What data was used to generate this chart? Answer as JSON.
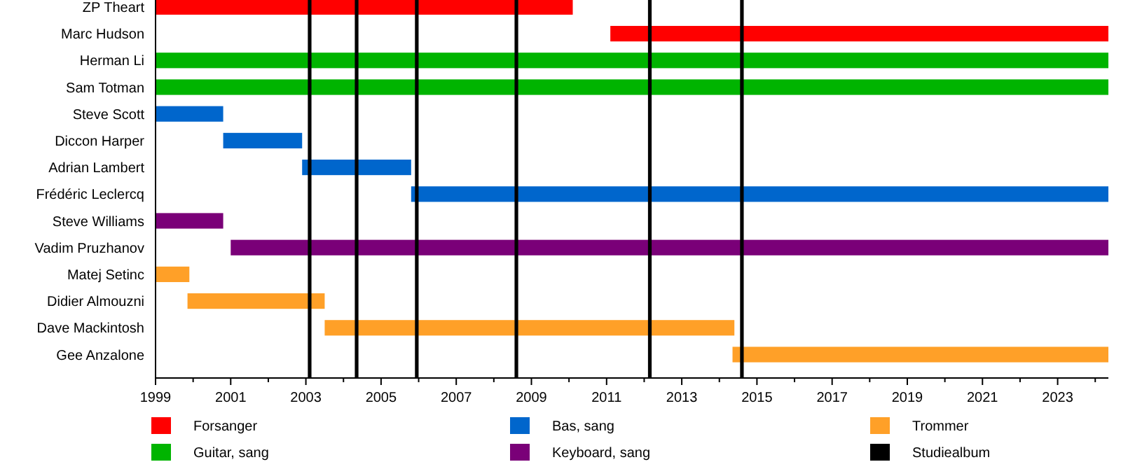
{
  "chart_data": {
    "type": "bar",
    "orientation": "horizontal",
    "categories": [
      "ZP Theart",
      "Marc Hudson",
      "Herman Li",
      "Sam Totman",
      "Steve Scott",
      "Diccon Harper",
      "Adrian Lambert",
      "Frédéric Leclercq",
      "Steve Williams",
      "Vadim Pruzhanov",
      "Matej Setinc",
      "Didier Almouzni",
      "Dave Mackintosh",
      "Gee Anzalone"
    ],
    "series": [
      {
        "name": "Forsanger",
        "color": "#ff0000",
        "base": [
          1999,
          2011.1,
          null,
          null,
          null,
          null,
          null,
          null,
          null,
          null,
          null,
          null,
          null,
          null
        ],
        "values": [
          11.1,
          13.25,
          null,
          null,
          null,
          null,
          null,
          null,
          null,
          null,
          null,
          null,
          null,
          null
        ]
      },
      {
        "name": "Guitar, sang",
        "color": "#00b400",
        "base": [
          null,
          null,
          1999,
          1999,
          null,
          null,
          null,
          null,
          null,
          null,
          null,
          null,
          null,
          null
        ],
        "values": [
          null,
          null,
          25.35,
          25.35,
          null,
          null,
          null,
          null,
          null,
          null,
          null,
          null,
          null,
          null
        ]
      },
      {
        "name": "Bas, sang",
        "color": "#0066cc",
        "base": [
          null,
          null,
          null,
          null,
          1999,
          2000.8,
          2002.9,
          2005.8,
          null,
          null,
          null,
          null,
          null,
          null
        ],
        "values": [
          null,
          null,
          null,
          null,
          1.8,
          2.1,
          2.9,
          18.55,
          null,
          null,
          null,
          null,
          null,
          null
        ]
      },
      {
        "name": "Keyboard, sang",
        "color": "#7a0078",
        "base": [
          null,
          null,
          null,
          null,
          null,
          null,
          null,
          null,
          1999,
          2001,
          null,
          null,
          null,
          null
        ],
        "values": [
          null,
          null,
          null,
          null,
          null,
          null,
          null,
          null,
          1.8,
          23.35,
          null,
          null,
          null,
          null
        ]
      },
      {
        "name": "Trommer",
        "color": "#ffa028",
        "base": [
          null,
          null,
          null,
          null,
          null,
          null,
          null,
          null,
          null,
          null,
          1999,
          1999.85,
          2003.5,
          2014.35
        ],
        "values": [
          null,
          null,
          null,
          null,
          null,
          null,
          null,
          null,
          null,
          null,
          0.9,
          3.65,
          10.9,
          10
        ]
      }
    ],
    "xlim": [
      1999,
      2024.35
    ],
    "xticks": [
      1999,
      {
        "value": 2000,
        "label": null
      },
      2001,
      {
        "value": 2002,
        "label": null
      },
      2003,
      {
        "value": 2004,
        "label": null
      },
      2005,
      {
        "value": 2006,
        "label": null
      },
      2007,
      {
        "value": 2008,
        "label": null
      },
      2009,
      {
        "value": 2010,
        "label": null
      },
      2011,
      {
        "value": 2012,
        "label": null
      },
      2013,
      {
        "value": 2014,
        "label": null
      },
      2015,
      {
        "value": 2016,
        "label": null
      },
      2017,
      {
        "value": 2018,
        "label": null
      },
      2019,
      {
        "value": 2020,
        "label": null
      },
      2021,
      {
        "value": 2022,
        "label": null
      },
      2023,
      {
        "value": 2024,
        "label": null
      }
    ],
    "ref_lines": [
      {
        "axis": "x",
        "value": 2003.1,
        "label": "Studiealbum",
        "color": "#000000"
      },
      {
        "axis": "x",
        "value": 2004.35,
        "color": "#000000"
      },
      {
        "axis": "x",
        "value": 2005.95,
        "color": "#000000"
      },
      {
        "axis": "x",
        "value": 2008.6,
        "color": "#000000"
      },
      {
        "axis": "x",
        "value": 2012.15,
        "color": "#000000"
      },
      {
        "axis": "x",
        "value": 2014.6,
        "color": "#000000"
      }
    ],
    "legend": "bottom",
    "grid": false
  }
}
